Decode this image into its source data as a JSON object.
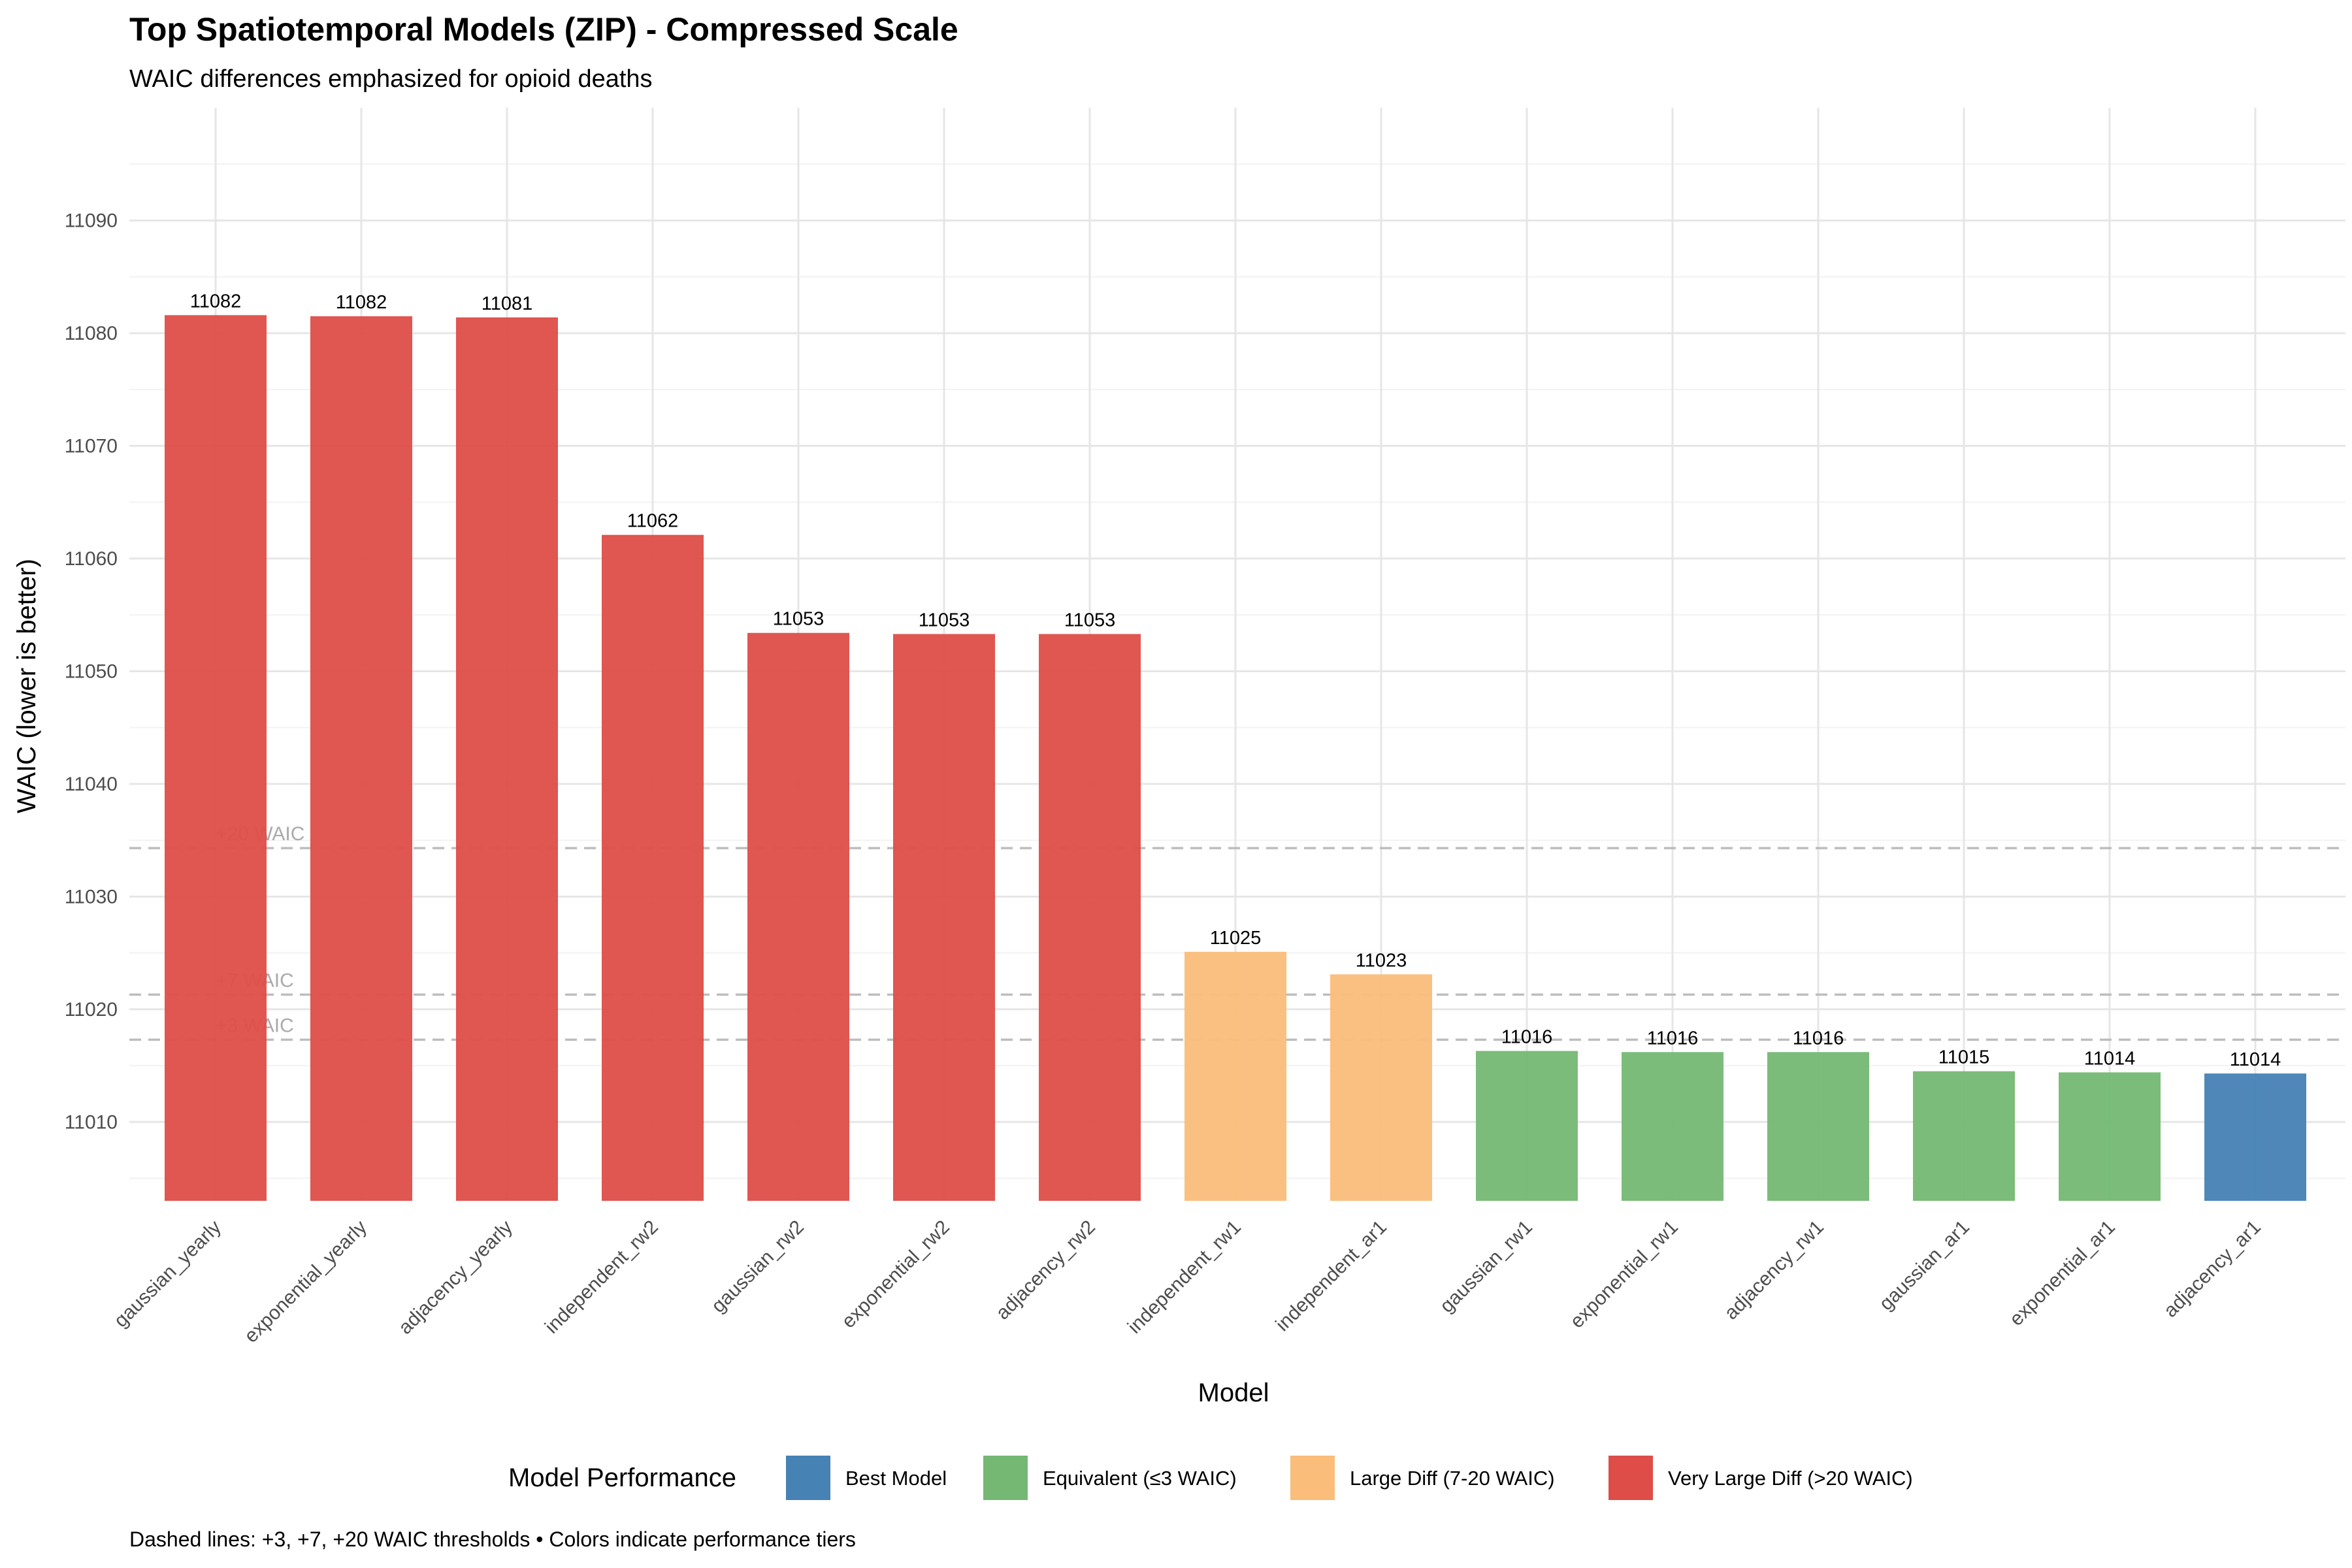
{
  "chart_data": {
    "type": "bar",
    "title": "Top Spatiotemporal Models (ZIP) - Compressed Scale",
    "subtitle": "WAIC differences emphasized for opioid deaths",
    "xlabel": "Model",
    "ylabel": "WAIC (lower is better)",
    "ylim": [
      11003,
      11100
    ],
    "yticks": [
      11010,
      11020,
      11030,
      11040,
      11050,
      11060,
      11070,
      11080,
      11090
    ],
    "grid": true,
    "categories": [
      "gaussian_yearly",
      "exponential_yearly",
      "adjacency_yearly",
      "independent_rw2",
      "gaussian_rw2",
      "exponential_rw2",
      "adjacency_rw2",
      "independent_rw1",
      "independent_ar1",
      "gaussian_rw1",
      "exponential_rw1",
      "adjacency_rw1",
      "gaussian_ar1",
      "exponential_ar1",
      "adjacency_ar1"
    ],
    "values": [
      11081.6,
      11081.5,
      11081.4,
      11062.1,
      11053.4,
      11053.3,
      11053.3,
      11025.1,
      11023.1,
      11016.3,
      11016.2,
      11016.2,
      11014.5,
      11014.4,
      11014.3
    ],
    "value_labels": [
      "11082",
      "11082",
      "11081",
      "11062",
      "11053",
      "11053",
      "11053",
      "11025",
      "11023",
      "11016",
      "11016",
      "11016",
      "11015",
      "11014",
      "11014"
    ],
    "tiers": [
      "very_large",
      "very_large",
      "very_large",
      "very_large",
      "very_large",
      "very_large",
      "very_large",
      "large",
      "large",
      "equivalent",
      "equivalent",
      "equivalent",
      "equivalent",
      "equivalent",
      "best"
    ],
    "reference_lines": [
      {
        "label": "+20 WAIC",
        "value": 11034.3
      },
      {
        "label": "+7 WAIC",
        "value": 11021.3
      },
      {
        "label": "+3 WAIC",
        "value": 11017.3
      }
    ],
    "legend": {
      "title": "Model Performance",
      "position": "bottom",
      "items": [
        {
          "key": "best",
          "label": "Best Model",
          "color": "#4682B4"
        },
        {
          "key": "equivalent",
          "label": "Equivalent (≤3 WAIC)",
          "color": "#74B874"
        },
        {
          "key": "large",
          "label": "Large Diff (7-20 WAIC)",
          "color": "#FABD7A"
        },
        {
          "key": "very_large",
          "label": "Very Large Diff (>20 WAIC)",
          "color": "#DE4D48"
        }
      ]
    },
    "caption": "Dashed lines: +3, +7, +20 WAIC thresholds • Colors indicate performance tiers"
  }
}
